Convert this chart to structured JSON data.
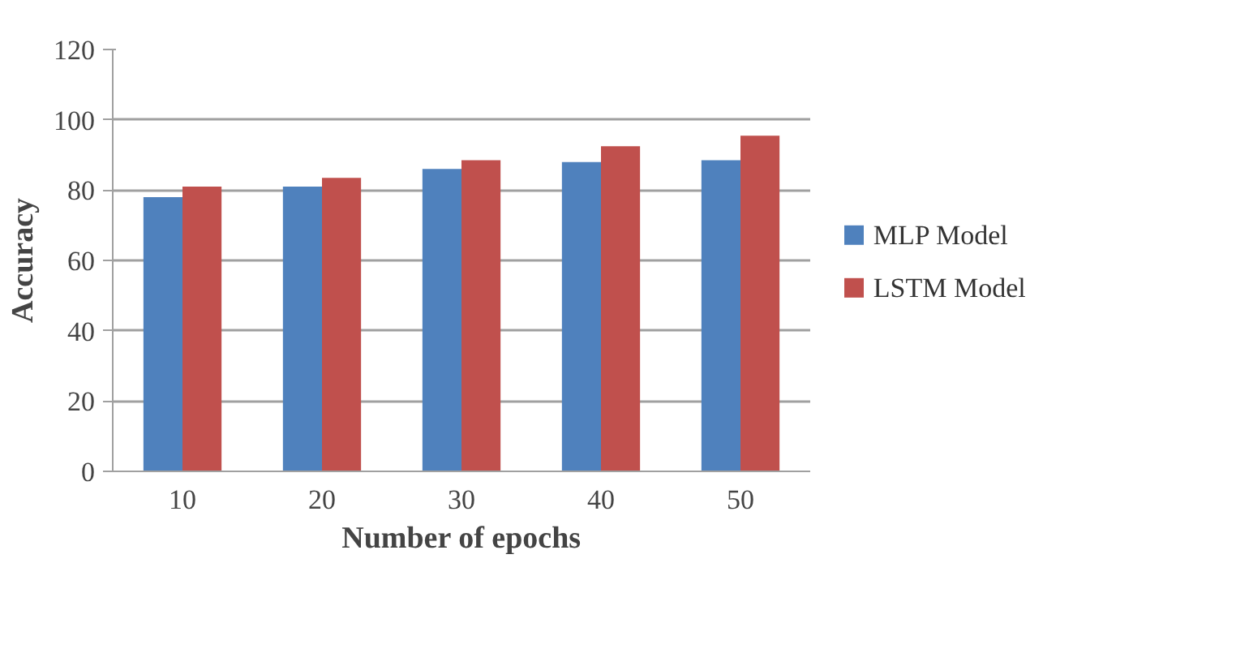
{
  "chart_data": {
    "type": "bar",
    "xlabel": "Number of epochs",
    "ylabel": "Accuracy",
    "categories": [
      "10",
      "20",
      "30",
      "40",
      "50"
    ],
    "series": [
      {
        "name": "MLP Model",
        "color": "#4f81bd",
        "values": [
          78,
          81,
          86,
          88,
          88.5
        ]
      },
      {
        "name": "LSTM Model",
        "color": "#c0504d",
        "values": [
          81,
          83.5,
          88.5,
          92.5,
          95.5
        ]
      }
    ],
    "ylim": [
      0,
      120
    ],
    "yticks": [
      0,
      20,
      40,
      60,
      80,
      100,
      120
    ],
    "grid": "y",
    "legend": "right"
  }
}
